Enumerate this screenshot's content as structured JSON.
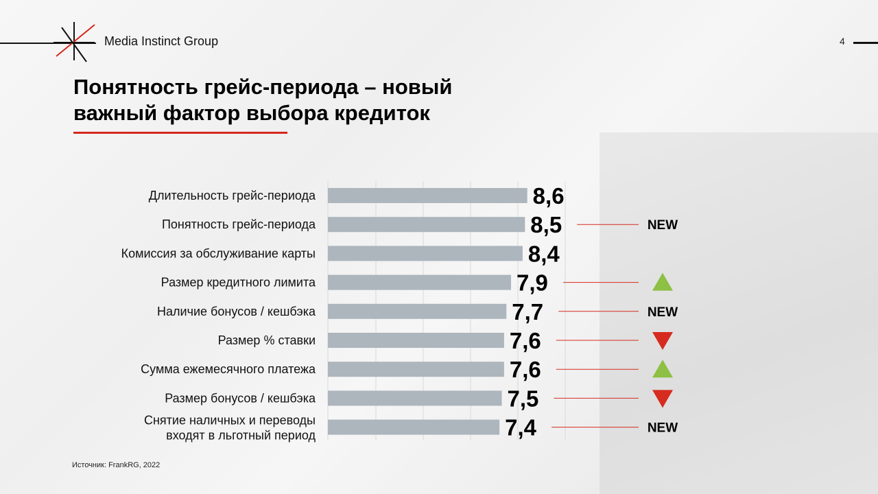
{
  "header": {
    "brand": "Media Instinct Group",
    "page_number": "4"
  },
  "title": {
    "line1": "Понятность грейс-периода – новый",
    "line2": "важный фактор выбора кредиток"
  },
  "source": "Источник: FrankRG, 2022",
  "colors": {
    "accent": "#d6271c",
    "bar": "#adb5bd",
    "up": "#8dc044",
    "down": "#d62b1f"
  },
  "chart_data": {
    "type": "bar",
    "orientation": "horizontal",
    "categories": [
      [
        "Длительность грейс-периода"
      ],
      [
        "Понятность грейс-периода"
      ],
      [
        "Комиссия за обслуживание карты"
      ],
      [
        "Размер кредитного лимита"
      ],
      [
        "Наличие бонусов / кешбэка"
      ],
      [
        "Размер % ставки "
      ],
      [
        "Сумма ежемесячного платежа"
      ],
      [
        "Размер бонусов / кешбэка"
      ],
      [
        "Снятие наличных и переводы",
        "входят в льготный период"
      ]
    ],
    "values": [
      8.6,
      8.5,
      8.4,
      7.9,
      7.7,
      7.6,
      7.6,
      7.5,
      7.4
    ],
    "value_labels": [
      "8,6",
      "8,5",
      "8,4",
      "7,9",
      "7,7",
      "7,6",
      "7,6",
      "7,5",
      "7,4"
    ],
    "markers": [
      null,
      "NEW",
      null,
      "up",
      "NEW",
      "down",
      "up",
      "down",
      "NEW"
    ],
    "grid": true
  }
}
